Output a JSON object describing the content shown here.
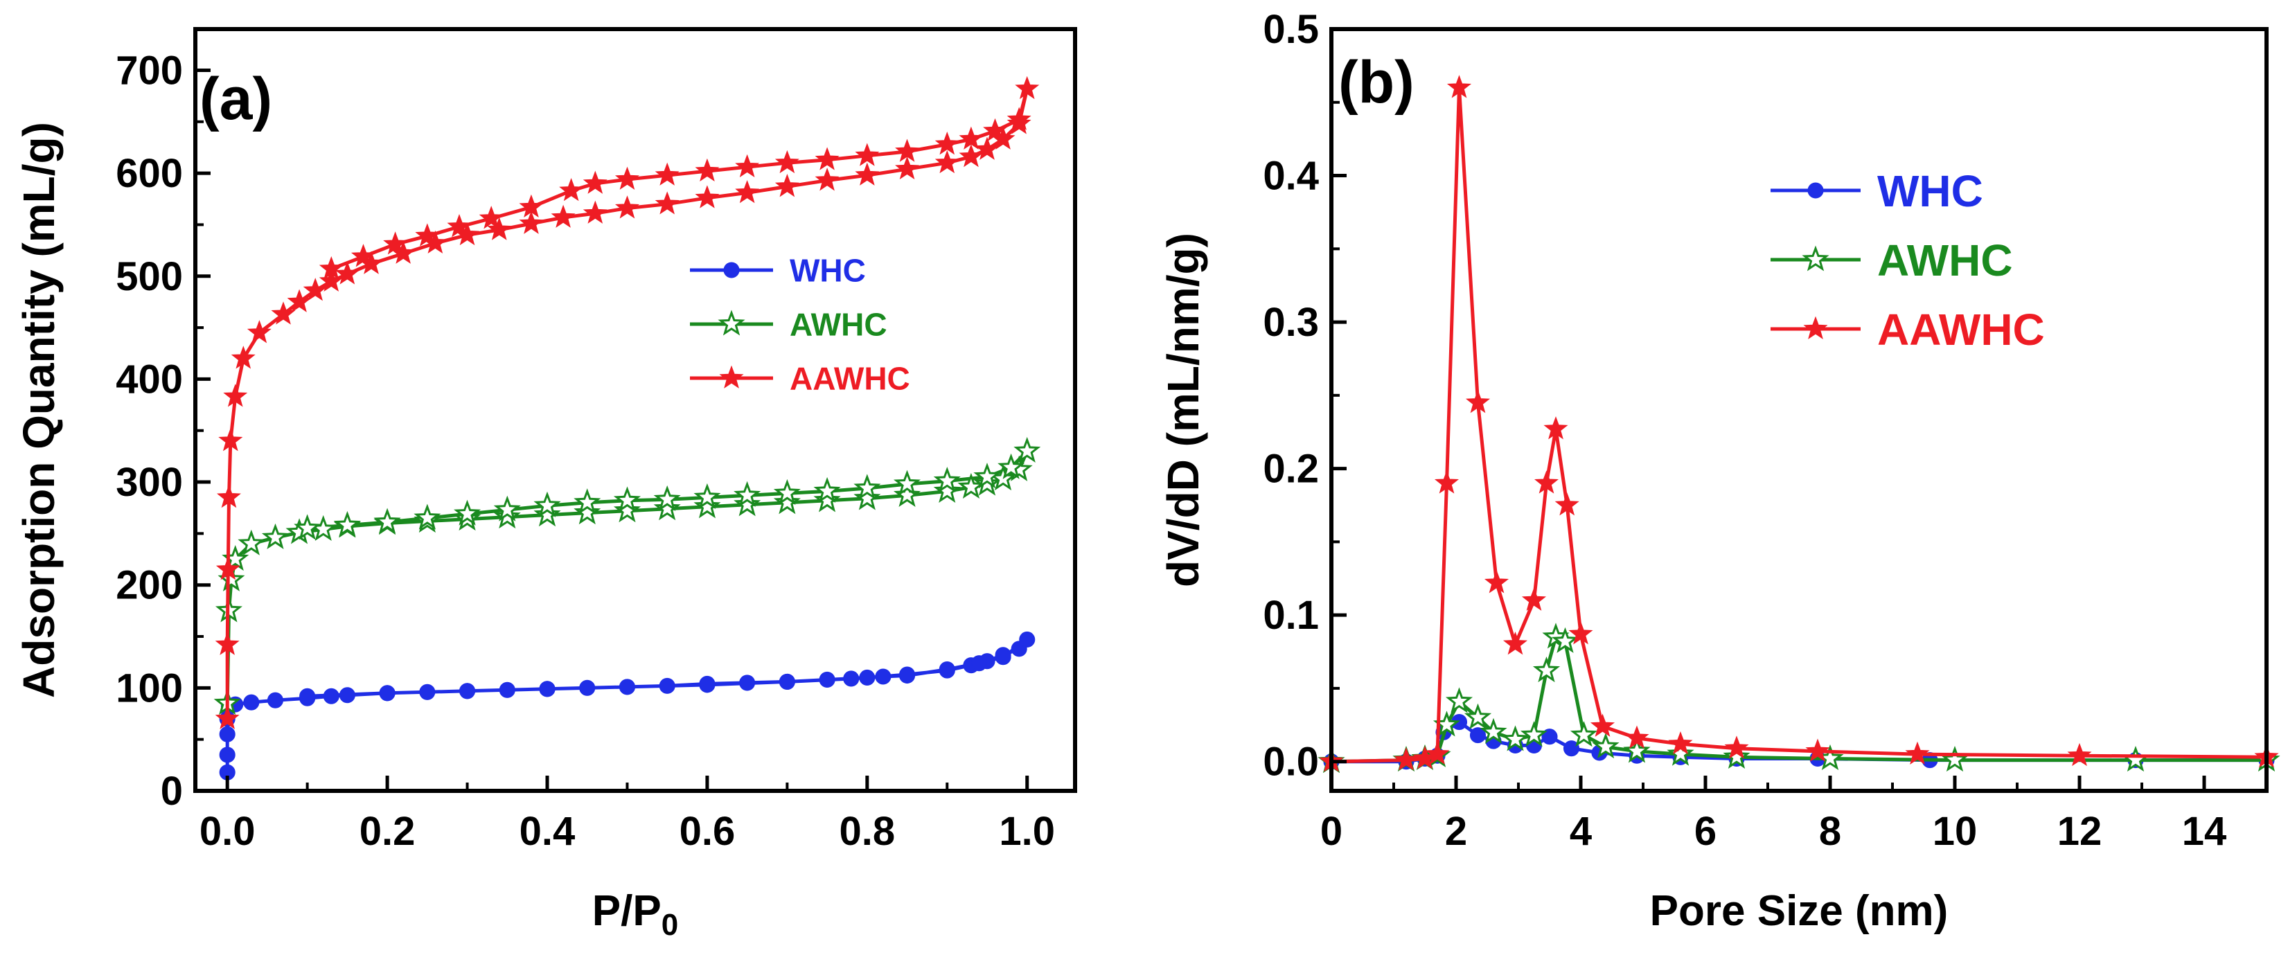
{
  "colors": {
    "WHC": "#1f2ee6",
    "AWHC": "#1a8a1f",
    "AAWHC": "#ee1c24",
    "axis": "#000000"
  },
  "panel_labels": {
    "a": "(a)",
    "b": "(b)"
  },
  "chart_data": [
    {
      "id": "a",
      "type": "line",
      "title": "(a)",
      "xlabel": "P/P0",
      "ylabel": "Adsorption Quantity (mL/g)",
      "xlim": [
        -0.04,
        1.06
      ],
      "ylim": [
        0,
        740
      ],
      "xticks": [
        0.0,
        0.2,
        0.4,
        0.6,
        0.8,
        1.0
      ],
      "xtick_labels": [
        "0.0",
        "0.2",
        "0.4",
        "0.6",
        "0.8",
        "1.0"
      ],
      "yticks": [
        0,
        100,
        200,
        300,
        400,
        500,
        600,
        700
      ],
      "ytick_labels": [
        "0",
        "100",
        "200",
        "300",
        "400",
        "500",
        "600",
        "700"
      ],
      "legend_position": "center-right",
      "series": [
        {
          "name": "WHC",
          "marker": "filled-circle",
          "x": [
            0.0,
            0.0,
            0.0,
            0.0,
            0.002,
            0.01,
            0.03,
            0.06,
            0.1,
            0.13,
            0.15,
            0.2,
            0.25,
            0.3,
            0.35,
            0.4,
            0.45,
            0.5,
            0.55,
            0.6,
            0.65,
            0.7,
            0.75,
            0.8,
            0.85,
            0.9,
            0.93,
            0.95,
            0.97,
            0.99,
            1.0,
            0.97,
            0.94,
            0.9,
            0.85,
            0.82,
            0.78,
            0.7,
            0.6,
            0.5,
            0.4,
            0.3,
            0.2,
            0.1
          ],
          "y": [
            18,
            35,
            55,
            70,
            82,
            84,
            86,
            88,
            90,
            92,
            93,
            95,
            96,
            97,
            98,
            99,
            100,
            101,
            102,
            104,
            105,
            106,
            108,
            110,
            113,
            117,
            122,
            126,
            132,
            138,
            147,
            130,
            124,
            118,
            112,
            111,
            109,
            106,
            103,
            101,
            99,
            97,
            95,
            92
          ]
        },
        {
          "name": "AWHC",
          "marker": "open-star",
          "x": [
            0.0,
            0.002,
            0.005,
            0.01,
            0.03,
            0.06,
            0.09,
            0.12,
            0.15,
            0.2,
            0.25,
            0.3,
            0.35,
            0.4,
            0.45,
            0.5,
            0.55,
            0.6,
            0.65,
            0.7,
            0.75,
            0.8,
            0.85,
            0.9,
            0.93,
            0.95,
            0.97,
            0.99,
            1.0,
            0.98,
            0.95,
            0.9,
            0.85,
            0.8,
            0.75,
            0.7,
            0.65,
            0.6,
            0.55,
            0.5,
            0.45,
            0.4,
            0.35,
            0.3,
            0.25,
            0.2,
            0.15,
            0.1
          ],
          "y": [
            85,
            175,
            205,
            225,
            240,
            246,
            251,
            254,
            257,
            260,
            262,
            264,
            266,
            268,
            270,
            272,
            274,
            276,
            278,
            280,
            282,
            284,
            287,
            291,
            295,
            298,
            303,
            312,
            330,
            314,
            305,
            301,
            298,
            294,
            291,
            289,
            287,
            285,
            283,
            282,
            280,
            277,
            273,
            269,
            265,
            261,
            258,
            255
          ]
        },
        {
          "name": "AAWHC",
          "marker": "filled-star",
          "x": [
            0.0,
            0.0,
            0.001,
            0.002,
            0.004,
            0.01,
            0.02,
            0.04,
            0.07,
            0.09,
            0.11,
            0.13,
            0.15,
            0.18,
            0.22,
            0.26,
            0.3,
            0.34,
            0.38,
            0.42,
            0.46,
            0.5,
            0.55,
            0.6,
            0.65,
            0.7,
            0.75,
            0.8,
            0.85,
            0.9,
            0.93,
            0.95,
            0.97,
            0.99,
            1.0,
            0.99,
            0.96,
            0.93,
            0.9,
            0.85,
            0.8,
            0.75,
            0.7,
            0.65,
            0.6,
            0.55,
            0.5,
            0.46,
            0.43,
            0.38,
            0.33,
            0.29,
            0.25,
            0.21,
            0.17,
            0.13
          ],
          "y": [
            70,
            142,
            215,
            285,
            340,
            383,
            420,
            445,
            463,
            475,
            486,
            495,
            502,
            512,
            522,
            532,
            540,
            545,
            551,
            557,
            561,
            566,
            570,
            576,
            581,
            587,
            593,
            598,
            604,
            610,
            616,
            623,
            633,
            648,
            682,
            652,
            641,
            633,
            628,
            621,
            617,
            613,
            610,
            606,
            602,
            598,
            594,
            590,
            583,
            567,
            556,
            548,
            539,
            531,
            519,
            507
          ]
        }
      ]
    },
    {
      "id": "b",
      "type": "line",
      "title": "(b)",
      "xlabel": "Pore Size (nm)",
      "ylabel": "dV/dD (mL/nm/g)",
      "xlim": [
        0,
        15
      ],
      "ylim": [
        -0.02,
        0.5
      ],
      "xticks": [
        0,
        2,
        4,
        6,
        8,
        10,
        12,
        14
      ],
      "xtick_labels": [
        "0",
        "2",
        "4",
        "6",
        "8",
        "10",
        "12",
        "14"
      ],
      "yticks": [
        0.0,
        0.1,
        0.2,
        0.3,
        0.4,
        0.5
      ],
      "ytick_labels": [
        "0.0",
        "0.1",
        "0.2",
        "0.3",
        "0.4",
        "0.5"
      ],
      "legend_position": "upper-right",
      "series": [
        {
          "name": "WHC",
          "marker": "filled-circle",
          "x": [
            0,
            1.2,
            1.5,
            1.7,
            1.8,
            2.05,
            2.35,
            2.6,
            2.95,
            3.25,
            3.5,
            3.85,
            4.3,
            4.9,
            5.6,
            6.5,
            7.8,
            9.6,
            12.9,
            15
          ],
          "y": [
            0.0,
            0.0,
            0.002,
            0.004,
            0.02,
            0.027,
            0.018,
            0.014,
            0.011,
            0.011,
            0.017,
            0.009,
            0.006,
            0.004,
            0.003,
            0.002,
            0.002,
            0.001,
            0.001,
            0.001
          ]
        },
        {
          "name": "AWHC",
          "marker": "open-star",
          "x": [
            0,
            1.2,
            1.5,
            1.7,
            1.85,
            2.05,
            2.35,
            2.6,
            2.95,
            3.25,
            3.45,
            3.6,
            3.75,
            4.05,
            4.4,
            4.9,
            5.6,
            6.5,
            8.0,
            10.0,
            12.9,
            15
          ],
          "y": [
            0.0,
            0.001,
            0.002,
            0.004,
            0.025,
            0.041,
            0.03,
            0.02,
            0.015,
            0.018,
            0.062,
            0.085,
            0.082,
            0.018,
            0.01,
            0.007,
            0.005,
            0.003,
            0.002,
            0.001,
            0.001,
            0.001
          ]
        },
        {
          "name": "AAWHC",
          "marker": "filled-star",
          "x": [
            0,
            1.2,
            1.5,
            1.7,
            1.85,
            2.05,
            2.35,
            2.65,
            2.95,
            3.25,
            3.45,
            3.6,
            3.78,
            4.0,
            4.35,
            4.9,
            5.6,
            6.5,
            7.8,
            9.4,
            12.0,
            15
          ],
          "y": [
            0.0,
            0.001,
            0.002,
            0.005,
            0.19,
            0.46,
            0.245,
            0.122,
            0.08,
            0.11,
            0.19,
            0.227,
            0.175,
            0.087,
            0.024,
            0.016,
            0.012,
            0.009,
            0.007,
            0.005,
            0.004,
            0.003
          ]
        }
      ]
    }
  ]
}
